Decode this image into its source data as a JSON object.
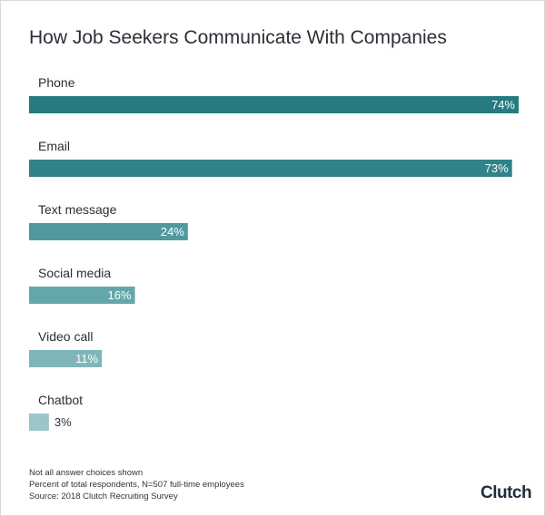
{
  "chart_data": {
    "type": "bar",
    "orientation": "horizontal",
    "title": "How Job Seekers Communicate With Companies",
    "categories": [
      "Phone",
      "Email",
      "Text message",
      "Social media",
      "Video call",
      "Chatbot"
    ],
    "values": [
      74,
      73,
      24,
      16,
      11,
      3
    ],
    "value_labels": [
      "74%",
      "73%",
      "24%",
      "16%",
      "11%",
      "3%"
    ],
    "colors": [
      "#267b80",
      "#2f8389",
      "#4f999d",
      "#64a6aa",
      "#7fb6b9",
      "#9bc6c8"
    ],
    "unit": "%",
    "xlim": [
      0,
      74
    ],
    "grid": false,
    "legend": "none"
  },
  "footnotes": [
    "Not all answer choices shown",
    "Percent of total respondents, N=507 full-time employees",
    "Source: 2018 Clutch Recruiting Survey"
  ],
  "brand": "Clutch"
}
